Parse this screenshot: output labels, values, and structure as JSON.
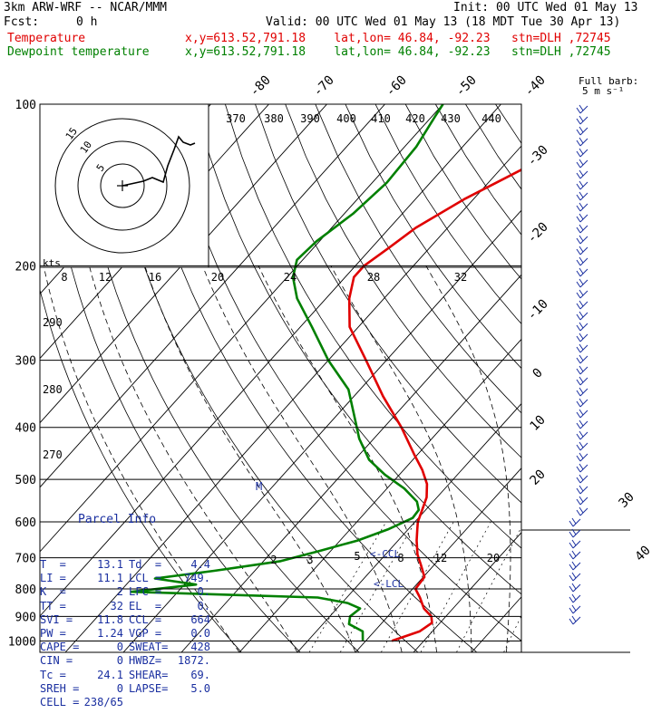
{
  "header": {
    "model": "3km ARW-WRF -- NCAR/MMM",
    "init": "Init: 00 UTC Wed 01 May 13",
    "fcst_label": "Fcst:",
    "fcst_value": "0 h",
    "valid": "Valid: 00 UTC Wed 01 May 13 (18 MDT Tue 30 Apr 13)",
    "temp_label": "Temperature",
    "dew_label": "Dewpoint temperature",
    "location": "x,y=613.52,791.18    lat,lon= 46.84, -92.23   stn=DLH ,72745"
  },
  "chart_data": {
    "type": "skew-T log-P",
    "y_scale": "log pressure",
    "pressure_levels": [
      "100",
      "200",
      "300",
      "400",
      "500",
      "600",
      "700",
      "800",
      "900",
      "1000"
    ],
    "skew_isotherm_labels": [
      "-80",
      "-70",
      "-60",
      "-50",
      "-40",
      "-30",
      "-20",
      "-10",
      "0",
      "10",
      "20",
      "30",
      "40"
    ],
    "theta_labels": [
      "370",
      "380",
      "390",
      "400",
      "410",
      "420",
      "430",
      "440"
    ],
    "hodo_speed_labels": [
      "8",
      "12",
      "16",
      "20",
      "24",
      "28",
      "32"
    ],
    "left_labels": [
      "290",
      "280",
      "270"
    ],
    "mixing_ratio_labels": [
      "2",
      "3",
      "5",
      "8",
      "12",
      "20"
    ],
    "hodograph": {
      "units_label": "kts",
      "ring_labels": [
        "5",
        "10",
        "15"
      ]
    },
    "wind_legend": {
      "line1": "Full barb:",
      "line2": "5 m s⁻¹"
    },
    "markers": {
      "ccl": "CCL",
      "lcl": "LCL",
      "m": "M"
    },
    "series": [
      {
        "name": "Temperature",
        "color": "#e00000",
        "points": [
          [
            1000,
            4.5
          ],
          [
            960,
            7.8
          ],
          [
            925,
            8.6
          ],
          [
            900,
            7.5
          ],
          [
            870,
            5.0
          ],
          [
            830,
            2.6
          ],
          [
            800,
            0.5
          ],
          [
            760,
            0.2
          ],
          [
            720,
            -2.4
          ],
          [
            690,
            -4.5
          ],
          [
            650,
            -6.8
          ],
          [
            620,
            -8.4
          ],
          [
            600,
            -9.5
          ],
          [
            570,
            -10.6
          ],
          [
            540,
            -11.8
          ],
          [
            510,
            -13.8
          ],
          [
            480,
            -16.8
          ],
          [
            450,
            -20.5
          ],
          [
            400,
            -27.0
          ],
          [
            350,
            -35.0
          ],
          [
            300,
            -43.5
          ],
          [
            260,
            -51.5
          ],
          [
            230,
            -56.0
          ],
          [
            210,
            -58.5
          ],
          [
            200,
            -58.5
          ],
          [
            185,
            -57.0
          ],
          [
            170,
            -55.5
          ],
          [
            150,
            -51.5
          ],
          [
            130,
            -45.5
          ],
          [
            115,
            -40.0
          ],
          [
            100,
            -33.0
          ]
        ]
      },
      {
        "name": "Dewpoint temperature",
        "color": "#008000",
        "points": [
          [
            1000,
            -0.5
          ],
          [
            960,
            -2.0
          ],
          [
            930,
            -5.5
          ],
          [
            900,
            -6.5
          ],
          [
            870,
            -6.0
          ],
          [
            850,
            -9.0
          ],
          [
            830,
            -15.0
          ],
          [
            810,
            -48.0
          ],
          [
            785,
            -38.0
          ],
          [
            765,
            -46.0
          ],
          [
            740,
            -37.0
          ],
          [
            710,
            -27.0
          ],
          [
            680,
            -22.0
          ],
          [
            650,
            -17.0
          ],
          [
            620,
            -13.5
          ],
          [
            590,
            -11.0
          ],
          [
            570,
            -11.2
          ],
          [
            550,
            -12.8
          ],
          [
            520,
            -17.0
          ],
          [
            490,
            -22.5
          ],
          [
            460,
            -27.5
          ],
          [
            420,
            -32.5
          ],
          [
            380,
            -37.0
          ],
          [
            340,
            -42.0
          ],
          [
            300,
            -50.0
          ],
          [
            260,
            -58.0
          ],
          [
            230,
            -65.0
          ],
          [
            210,
            -69.0
          ],
          [
            195,
            -71.0
          ],
          [
            180,
            -70.5
          ],
          [
            160,
            -68.5
          ],
          [
            140,
            -67.5
          ],
          [
            120,
            -68.0
          ],
          [
            105,
            -69.5
          ],
          [
            100,
            -70.0
          ]
        ]
      }
    ]
  },
  "parcel_info": {
    "title": "Parcel Info",
    "rows": [
      {
        "l": "T  =",
        "lv": "13.1",
        "r": "Td  =",
        "rv": "4.4"
      },
      {
        "l": "LI =",
        "lv": "11.1",
        "r": "LCL =",
        "rv": "749."
      },
      {
        "l": "K  =",
        "lv": "2",
        "r": "LFC =",
        "rv": "0."
      },
      {
        "l": "TT =",
        "lv": "32",
        "r": "EL  =",
        "rv": "0."
      },
      {
        "l": "SVI =",
        "lv": "11.8",
        "r": "CCL =",
        "rv": "664"
      },
      {
        "l": "PW =",
        "lv": "1.24",
        "r": "VGP =",
        "rv": "0.0"
      },
      {
        "l": "CAPE =",
        "lv": "0",
        "r": "SWEAT=",
        "rv": "428"
      },
      {
        "l": "CIN =",
        "lv": "0",
        "r": "HWBZ=",
        "rv": "1872."
      },
      {
        "l": "Tc =",
        "lv": "24.1",
        "r": "SHEAR=",
        "rv": "69."
      },
      {
        "l": "SREH =",
        "lv": "0",
        "r": "LAPSE=",
        "rv": "5.0"
      },
      {
        "l": "CELL =",
        "lv": "238/65",
        "r": "",
        "rv": ""
      }
    ]
  }
}
